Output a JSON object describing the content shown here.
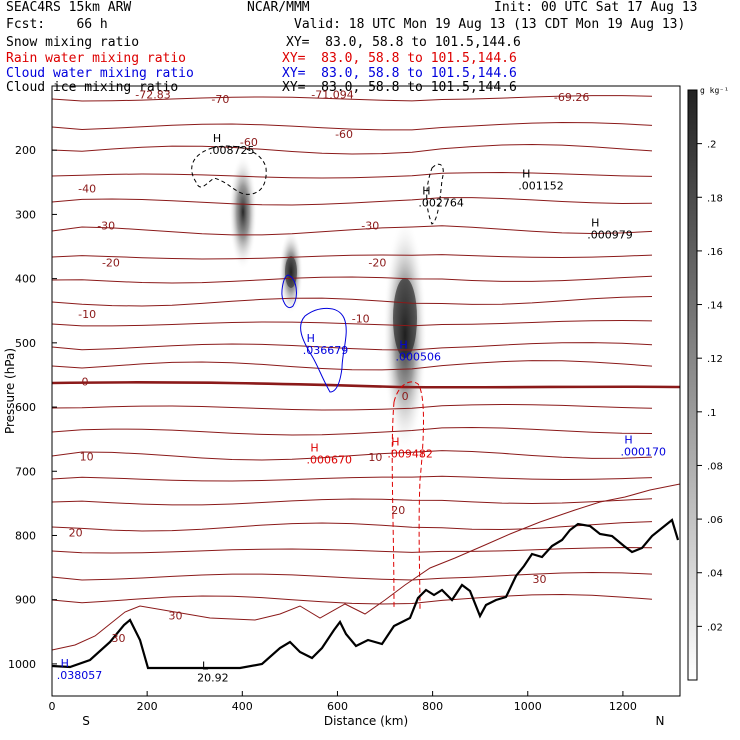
{
  "header": {
    "model": "SEAC4RS 15km ARW",
    "center": "NCAR/MMM",
    "init": "Init: 00 UTC Sat 17 Aug 13",
    "fcst": "Fcst:    66 h",
    "valid": "Valid: 18 UTC Mon 19 Aug 13 (13 CDT Mon 19 Aug 13)"
  },
  "fields": [
    {
      "name": "Snow mixing ratio",
      "xy": "XY=  83.0, 58.8 to 101.5,144.6",
      "color": "#000000"
    },
    {
      "name": "Rain water mixing ratio",
      "xy": "XY=  83.0, 58.8 to 101.5,144.6",
      "color": "#dd0000"
    },
    {
      "name": "Cloud water mixing ratio",
      "xy": "XY=  83.0, 58.8 to 101.5,144.6",
      "color": "#0000dd"
    },
    {
      "name": "Cloud ice mixing ratio",
      "xy": "XY=  83.0, 58.8 to 101.5,144.6",
      "color": "#000000"
    }
  ],
  "chart_data": {
    "type": "cross-section",
    "xlabel": "Distance (km)",
    "ylabel": "Pressure (hPa)",
    "x_range": [
      0,
      1320
    ],
    "y_range": [
      1050,
      100
    ],
    "x_ticks": [
      0,
      200,
      400,
      600,
      800,
      1000,
      1200
    ],
    "y_ticks": [
      1000,
      900,
      800,
      700,
      600,
      500,
      400,
      300,
      200
    ],
    "end_labels": {
      "left": "S",
      "right": "N"
    },
    "colorbar": {
      "unit": "g kg⁻¹",
      "ticks": [
        ".02",
        ".04",
        ".06",
        ".08",
        ".1",
        ".12",
        ".14",
        ".16",
        ".18",
        ".2"
      ],
      "range": [
        0,
        0.22
      ]
    },
    "temperature_contours": {
      "color": "#8b1a1a",
      "labels": [
        {
          "text": "-72.83",
          "x": 175,
          "p": 113
        },
        {
          "text": "-71.094",
          "x": 545,
          "p": 113
        },
        {
          "text": "-69.26",
          "x": 1055,
          "p": 117
        },
        {
          "text": "-70",
          "x": 335,
          "p": 120
        },
        {
          "text": "-60",
          "x": 395,
          "p": 187
        },
        {
          "text": "-60",
          "x": 595,
          "p": 175
        },
        {
          "text": "-40",
          "x": 55,
          "p": 260
        },
        {
          "text": "-30",
          "x": 95,
          "p": 317
        },
        {
          "text": "-30",
          "x": 650,
          "p": 317
        },
        {
          "text": "-20",
          "x": 105,
          "p": 375
        },
        {
          "text": "-20",
          "x": 665,
          "p": 375
        },
        {
          "text": "-10",
          "x": 55,
          "p": 455
        },
        {
          "text": "-10",
          "x": 630,
          "p": 462
        },
        {
          "text": "0",
          "x": 62,
          "p": 560
        },
        {
          "text": "0",
          "x": 735,
          "p": 583
        },
        {
          "text": "10",
          "x": 58,
          "p": 677
        },
        {
          "text": "10",
          "x": 665,
          "p": 678
        },
        {
          "text": "20",
          "x": 35,
          "p": 795
        },
        {
          "text": "20",
          "x": 713,
          "p": 760
        },
        {
          "text": "30",
          "x": 245,
          "p": 925
        },
        {
          "text": "30",
          "x": 1010,
          "p": 868
        },
        {
          "text": "30",
          "x": 125,
          "p": 960
        }
      ]
    },
    "extrema_labels": [
      {
        "mark": "H",
        "value": ".008725",
        "x": 330,
        "p": 190,
        "color": "#000000"
      },
      {
        "mark": "H",
        "value": ".002764",
        "x": 770,
        "p": 272,
        "color": "#000000"
      },
      {
        "mark": "H",
        "value": ".001152",
        "x": 980,
        "p": 246,
        "color": "#000000"
      },
      {
        "mark": "H",
        "value": ".000979",
        "x": 1125,
        "p": 322,
        "color": "#000000"
      },
      {
        "mark": "H",
        "value": ".036679",
        "x": 527,
        "p": 502,
        "color": "#0000dd"
      },
      {
        "mark": "H",
        "value": ".000506",
        "x": 722,
        "p": 512,
        "color": "#0000dd"
      },
      {
        "mark": "H",
        "value": ".000170",
        "x": 1195,
        "p": 660,
        "color": "#0000dd"
      },
      {
        "mark": "H",
        "value": ".000670",
        "x": 535,
        "p": 672,
        "color": "#dd0000"
      },
      {
        "mark": "H",
        "value": ".009482",
        "x": 705,
        "p": 663,
        "color": "#dd0000"
      },
      {
        "mark": "H",
        "value": ".038057",
        "x": 10,
        "p": 1008,
        "color": "#0000dd"
      },
      {
        "mark": "L",
        "value": "20.92",
        "x": 305,
        "p": 1012,
        "color": "#000000"
      }
    ]
  }
}
